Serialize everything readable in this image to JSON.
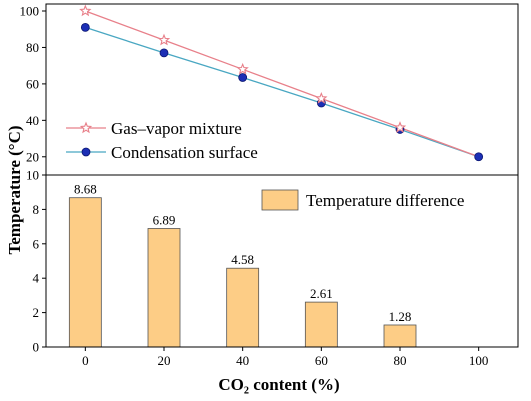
{
  "chart_data": [
    {
      "type": "line",
      "x": [
        0,
        20,
        40,
        60,
        80,
        100
      ],
      "series": [
        {
          "name": "Gas–vapor mixture",
          "values": [
            100,
            84,
            68,
            52,
            36,
            20
          ],
          "color": "#e8808a",
          "marker": "open-star"
        },
        {
          "name": "Condensation surface",
          "values": [
            91,
            77,
            63.5,
            49.5,
            35,
            20
          ],
          "color": "#49a7c2",
          "marker": "filled-circle-blue"
        }
      ],
      "ylim": [
        10,
        100
      ],
      "yticks": [
        "20",
        "40",
        "60",
        "80",
        "100"
      ],
      "legend": "bottom-left",
      "grid": false
    },
    {
      "type": "bar",
      "x": [
        0,
        20,
        40,
        60,
        80,
        100
      ],
      "series": [
        {
          "name": "Temperature difference",
          "values": [
            8.68,
            6.89,
            4.58,
            2.61,
            1.28,
            0
          ],
          "color": "#fdcd86"
        }
      ],
      "data_labels": [
        "8.68",
        "6.89",
        "4.58",
        "2.61",
        "1.28"
      ],
      "ylim": [
        0,
        10
      ],
      "yticks": [
        "0",
        "2",
        "4",
        "6",
        "8",
        "10"
      ],
      "legend": "top-right",
      "grid": false
    }
  ],
  "axes": {
    "ylabel": "Temperature (°C)",
    "xlabel": "CO₂ content (%)",
    "xticks": [
      "0",
      "20",
      "40",
      "60",
      "80",
      "100"
    ]
  }
}
